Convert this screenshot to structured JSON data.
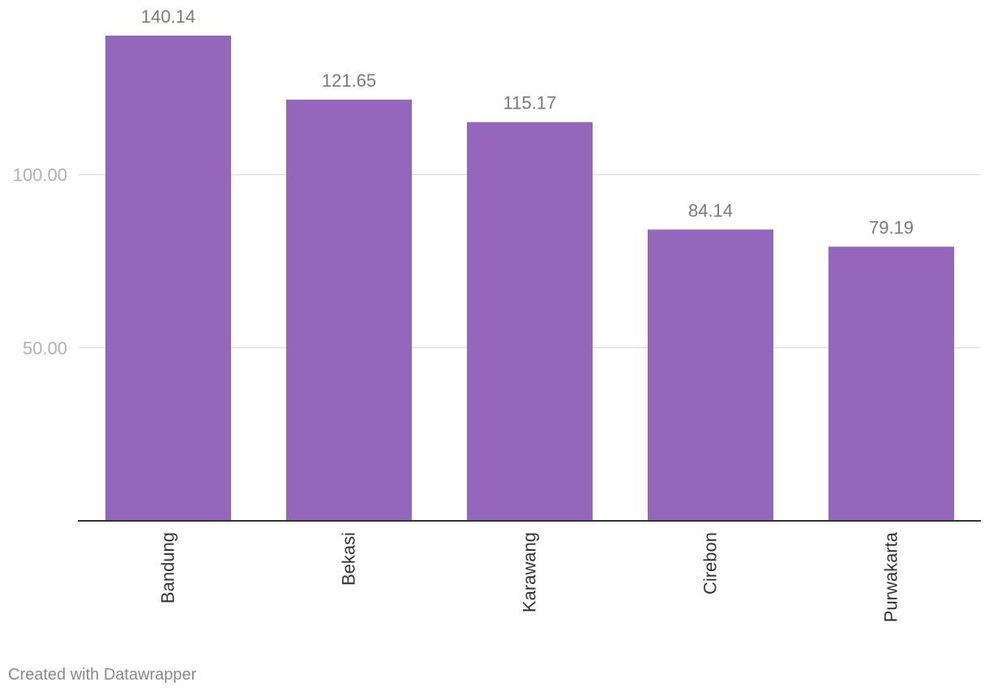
{
  "chart_data": {
    "type": "bar",
    "categories": [
      "Bandung",
      "Bekasi",
      "Karawang",
      "Cirebon",
      "Purwakarta"
    ],
    "values": [
      140.14,
      121.65,
      115.17,
      84.14,
      79.19
    ],
    "value_labels": [
      "140.14",
      "121.65",
      "115.17",
      "84.14",
      "79.19"
    ],
    "y_ticks": [
      50,
      100
    ],
    "y_tick_labels": [
      "50.00",
      "100.00"
    ],
    "ylim": [
      0,
      140.14
    ],
    "grid": true,
    "legend": "none",
    "title": "",
    "xlabel": "",
    "ylabel": "",
    "bar_color": "#9467bd",
    "tick_label_color": "#b2b2b2",
    "value_label_color": "#7a7a7a",
    "category_label_color": "#333333",
    "gridline_color": "#e1e1e1",
    "baseline_color": "#333333"
  },
  "footer": {
    "credit": "Created with Datawrapper"
  }
}
